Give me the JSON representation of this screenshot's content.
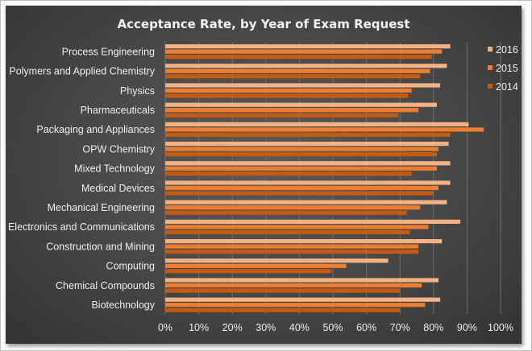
{
  "chart_data": {
    "type": "bar",
    "orientation": "horizontal",
    "title": "Acceptance Rate, by Year of Exam Request",
    "xlabel": "",
    "ylabel": "",
    "xlim": [
      0,
      100
    ],
    "grid": true,
    "legend_position": "right",
    "tick_labels": [
      "0%",
      "10%",
      "20%",
      "30%",
      "40%",
      "50%",
      "60%",
      "70%",
      "80%",
      "90%",
      "100%"
    ],
    "categories": [
      "Process Engineering",
      "Polymers and Applied Chemistry",
      "Physics",
      "Pharmaceuticals",
      "Packaging and Appliances",
      "OPW Chemistry",
      "Mixed Technology",
      "Medical Devices",
      "Mechanical Engineering",
      "Electronics and Communications",
      "Construction and Mining",
      "Computing",
      "Chemical Compounds",
      "Biotechnology"
    ],
    "series": [
      {
        "name": "2016",
        "color": "#f4b183",
        "values": [
          85,
          84,
          82,
          81,
          90.5,
          84.5,
          85,
          85,
          84,
          88,
          82.5,
          66.5,
          81.5,
          82
        ]
      },
      {
        "name": "2015",
        "color": "#ed7d31",
        "values": [
          82.5,
          79,
          73.5,
          75.5,
          95,
          81.5,
          81,
          81.5,
          76,
          78.5,
          75.5,
          54,
          76.5,
          77.5
        ]
      },
      {
        "name": "2014",
        "color": "#c55a11",
        "values": [
          79.5,
          76,
          72.5,
          69.5,
          85,
          81,
          73.5,
          80,
          72,
          73,
          75.5,
          49.5,
          70,
          70
        ]
      }
    ]
  }
}
